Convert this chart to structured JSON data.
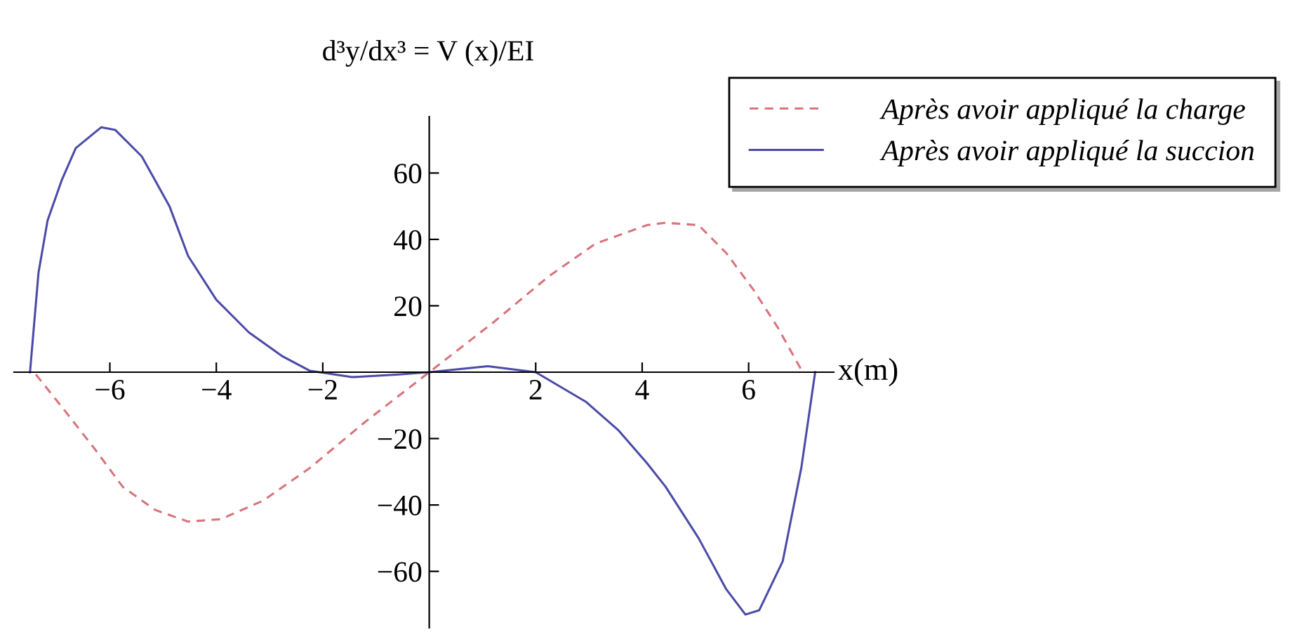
{
  "chart_data": {
    "type": "line",
    "title": "d³y/dx³ = V (x)/EI",
    "xlabel": "x(m)",
    "xlim": [
      -7.8,
      7.6
    ],
    "ylim": [
      -77,
      77
    ],
    "xticks": [
      {
        "value": -6,
        "label": "−6"
      },
      {
        "value": -4,
        "label": "−4"
      },
      {
        "value": -2,
        "label": "−2"
      },
      2,
      4,
      6
    ],
    "yticks": [
      {
        "value": -60,
        "label": "−60"
      },
      {
        "value": -40,
        "label": "−40"
      },
      {
        "value": -20,
        "label": "−20"
      },
      20,
      40,
      60
    ],
    "grid": false,
    "legend": "top right",
    "marker": "none",
    "series": [
      {
        "name": "Après avoir appliqué la charge",
        "color": "#d9737b",
        "line_style": "dashed",
        "x": [
          -7.39,
          -6.9,
          -6.29,
          -5.76,
          -5.15,
          -4.53,
          -3.92,
          -3.12,
          -2.24,
          -1.19,
          0,
          1.19,
          2.24,
          3.12,
          4.09,
          4.44,
          5.06,
          5.58,
          6.1,
          6.55,
          6.99
        ],
        "values": [
          -0.7,
          -10.5,
          -23,
          -34.5,
          -41.5,
          -45,
          -44.3,
          -38.7,
          -28.8,
          -14.8,
          0,
          14.8,
          28.8,
          38.7,
          44.3,
          45,
          44.3,
          35.9,
          24.6,
          13.4,
          0.7
        ]
      },
      {
        "name": "Après avoir appliqué la succion",
        "color": "#4b4ba8",
        "line_style": "solid",
        "x": [
          -7.5,
          -7.34,
          -7.17,
          -6.9,
          -6.64,
          -6.16,
          -5.9,
          -5.4,
          -4.88,
          -4.53,
          -4.0,
          -3.39,
          -2.77,
          -2.24,
          -1.45,
          -0.57,
          0,
          1.1,
          2,
          2.95,
          3.56,
          4.09,
          4.44,
          5.06,
          5.58,
          5.94,
          6.2,
          6.64,
          6.99,
          7.25
        ],
        "values": [
          0,
          30,
          45.7,
          58,
          67.5,
          73.8,
          73,
          65,
          50,
          35,
          21.8,
          12,
          4.9,
          0.4,
          -1.5,
          -0.7,
          0,
          1.8,
          0,
          -9,
          -17.6,
          -27.4,
          -34.5,
          -50,
          -65.4,
          -73,
          -71.7,
          -57,
          -28.8,
          0
        ]
      }
    ]
  }
}
